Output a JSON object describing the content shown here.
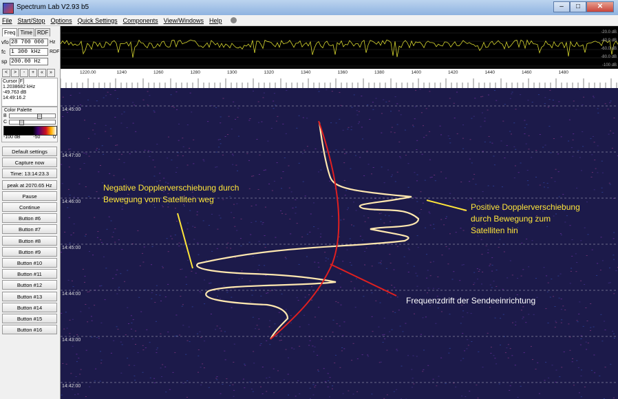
{
  "window": {
    "title": "Spectrum Lab V2.93 b5",
    "minimize": "–",
    "maximize": "□",
    "close": "✕"
  },
  "menu": [
    "File",
    "Start/Stop",
    "Options",
    "Quick Settings",
    "Components",
    "View/Windows",
    "Help"
  ],
  "left": {
    "tabs": [
      "Freq",
      "Time",
      "RDF"
    ],
    "fields": [
      {
        "label": "vfo",
        "value": "28 700 000",
        "unit": "Hz"
      },
      {
        "label": "fc",
        "value": "1 300 kHz",
        "unit": "RDF"
      },
      {
        "label": "sp",
        "value": "200.00 Hz",
        "unit": ""
      }
    ],
    "nav": [
      "<",
      ">",
      "-",
      "+",
      "«",
      "»"
    ],
    "cursor": {
      "title": "Cursor [F]",
      "freq": "1.2038682 kHz",
      "level": "-49.763 dB",
      "time": "14:49:16.2"
    },
    "palette": {
      "title": "Color Palette",
      "b_label": "B",
      "c_label": "C",
      "min": "-100 dB",
      "mid": "-50",
      "max": "0"
    },
    "buttons": [
      "Default settings",
      "Capture now",
      "Time: 13:14:23.3",
      "peak at 2070.65 Hz",
      "Pause",
      "Continue",
      "Button #6",
      "Button #7",
      "Button #8",
      "Button #9",
      "Button #10",
      "Button #11",
      "Button #12",
      "Button #13",
      "Button #14",
      "Button #15",
      "Button #16"
    ]
  },
  "spectrum": {
    "db_labels": [
      "-20.0 dB",
      "-40.0 dB",
      "-60.0 dB",
      "-80.0 dB",
      "-100 dB"
    ]
  },
  "freq_axis": {
    "labels": [
      "1220.00",
      "1240",
      "1260",
      "1280",
      "1300",
      "1320",
      "1340",
      "1360",
      "1380",
      "1400",
      "1420",
      "1440",
      "1460",
      "1480"
    ]
  },
  "waterfall": {
    "times": [
      "14:45:00",
      "14:47:00",
      "14:46:00",
      "14:45:00",
      "14:44:00",
      "14:43:00",
      "14:42:00"
    ],
    "annotations": {
      "negative_line1": "Negative Dopplerverschiebung durch",
      "negative_line2": "Bewegung vom Satelliten weg",
      "positive_line1": "Positive Dopplerverschiebung",
      "positive_line2": "durch Bewegung zum",
      "positive_line3": "Satelliten hin",
      "drift": "Frequenzdrift der Sendeeinrichtung"
    },
    "colors": {
      "annotation": "#ffe63a",
      "drift_curve": "#e02020",
      "background": "#1c1a4a"
    }
  }
}
